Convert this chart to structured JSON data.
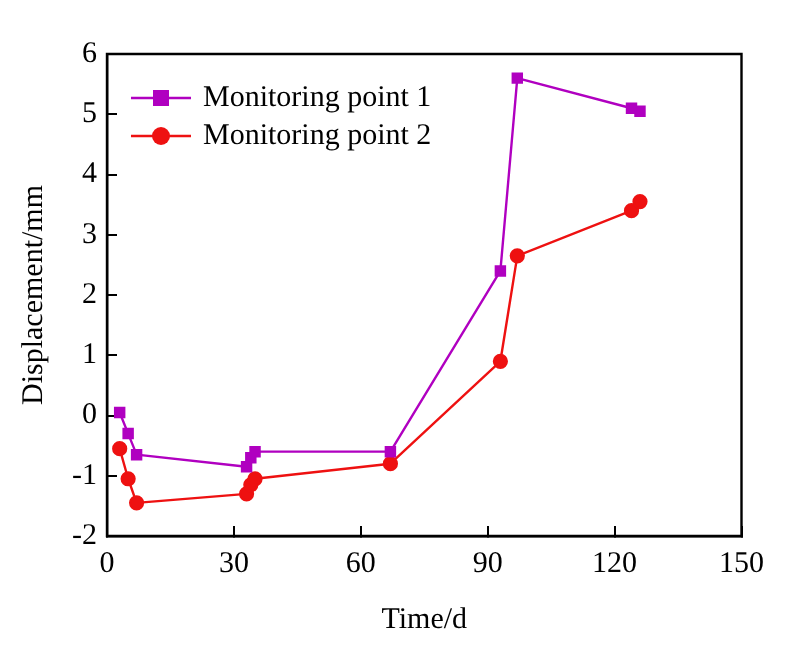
{
  "chart_data": {
    "type": "line",
    "xlabel": "Time/d",
    "ylabel": "Displacement/mm",
    "xlim": [
      0,
      150
    ],
    "xticks": [
      0,
      30,
      60,
      90,
      120,
      150
    ],
    "ylim": [
      -2,
      6
    ],
    "yticks": [
      -2,
      -1,
      0,
      1,
      2,
      3,
      4,
      5,
      6
    ],
    "grid": false,
    "legend": "top left",
    "series": [
      {
        "name": "Monitoring point 1",
        "color": "#b000c0",
        "marker": "square",
        "x": [
          3,
          5,
          7,
          33,
          34,
          35,
          67,
          93,
          97,
          124,
          126
        ],
        "values": [
          0.05,
          -0.3,
          -0.65,
          -0.85,
          -0.7,
          -0.6,
          -0.6,
          2.4,
          5.6,
          5.1,
          5.05
        ]
      },
      {
        "name": "Monitoring point 2",
        "color": "#ee1111",
        "marker": "circle",
        "x": [
          3,
          5,
          7,
          33,
          34,
          35,
          67,
          93,
          97,
          124,
          126
        ],
        "values": [
          -0.55,
          -1.05,
          -1.45,
          -1.3,
          -1.15,
          -1.05,
          -0.8,
          0.9,
          2.65,
          3.4,
          3.55
        ]
      }
    ]
  }
}
